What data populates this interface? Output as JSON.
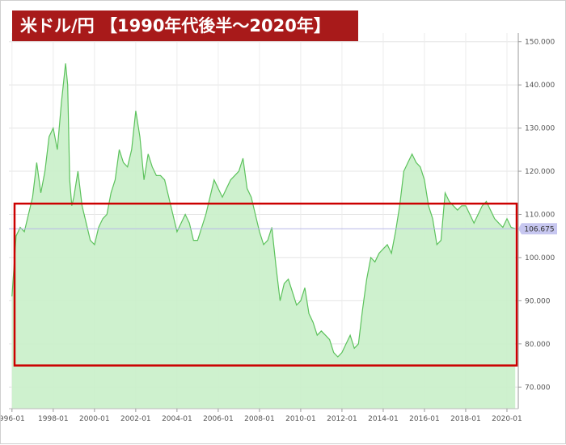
{
  "chart_data": {
    "type": "area",
    "title": "米ドル/円 【1990年代後半〜2020年】",
    "xlabel": "",
    "ylabel": "",
    "ylim": [
      65,
      152
    ],
    "y_ticks": [
      "150.000",
      "140.000",
      "130.000",
      "120.000",
      "110.000",
      "100.000",
      "90.000",
      "80.000",
      "70.000"
    ],
    "x_ticks": [
      "996-01",
      "1998-01",
      "2000-01",
      "2002-01",
      "2004-01",
      "2006-01",
      "2008-01",
      "2010-01",
      "2012-01",
      "2014-01",
      "2016-01",
      "2018-01",
      "2020-01"
    ],
    "current_value": "106.675",
    "highlight_range": [
      75,
      112.5
    ],
    "grid": true,
    "colors": {
      "line": "#5cc25c",
      "fill": "#c9efc9",
      "highlight": "#cc0000",
      "current_line": "#b7b7e8",
      "current_label_bg": "#c7c7f0",
      "title_bg": "#a81a1a"
    },
    "series": [
      {
        "x": [
          1996.0,
          1996.2,
          1996.4,
          1996.6,
          1996.8,
          1997.0,
          1997.2,
          1997.4,
          1997.6,
          1997.8,
          1998.0,
          1998.2,
          1998.4,
          1998.6,
          1998.7,
          1998.8,
          1998.9,
          1999.0,
          1999.2,
          1999.4,
          1999.6,
          1999.8,
          2000.0,
          2000.2,
          2000.4,
          2000.6,
          2000.8,
          2001.0,
          2001.2,
          2001.4,
          2001.6,
          2001.8,
          2002.0,
          2002.2,
          2002.4,
          2002.6,
          2002.8,
          2003.0,
          2003.2,
          2003.4,
          2003.6,
          2003.8,
          2004.0,
          2004.2,
          2004.4,
          2004.6,
          2004.8,
          2005.0,
          2005.2,
          2005.4,
          2005.6,
          2005.8,
          2006.0,
          2006.2,
          2006.4,
          2006.6,
          2006.8,
          2007.0,
          2007.2,
          2007.4,
          2007.6,
          2007.8,
          2008.0,
          2008.2,
          2008.4,
          2008.6,
          2008.8,
          2009.0,
          2009.2,
          2009.4,
          2009.6,
          2009.8,
          2010.0,
          2010.2,
          2010.4,
          2010.6,
          2010.8,
          2011.0,
          2011.2,
          2011.4,
          2011.6,
          2011.8,
          2012.0,
          2012.2,
          2012.4,
          2012.6,
          2012.8,
          2013.0,
          2013.2,
          2013.4,
          2013.6,
          2013.8,
          2014.0,
          2014.2,
          2014.4,
          2014.6,
          2014.8,
          2015.0,
          2015.2,
          2015.4,
          2015.6,
          2015.8,
          2016.0,
          2016.2,
          2016.4,
          2016.6,
          2016.8,
          2017.0,
          2017.2,
          2017.4,
          2017.6,
          2017.8,
          2018.0,
          2018.2,
          2018.4,
          2018.6,
          2018.8,
          2019.0,
          2019.2,
          2019.4,
          2019.6,
          2019.8,
          2020.0,
          2020.2,
          2020.4
        ],
        "values": [
          91,
          105,
          107,
          106,
          110,
          114,
          122,
          115,
          120,
          128,
          130,
          125,
          136,
          145,
          140,
          118,
          112,
          114,
          120,
          112,
          108,
          104,
          103,
          107,
          109,
          110,
          115,
          118,
          125,
          122,
          121,
          125,
          134,
          128,
          118,
          124,
          121,
          119,
          119,
          118,
          114,
          110,
          106,
          108,
          110,
          108,
          104,
          104,
          107,
          110,
          114,
          118,
          116,
          114,
          116,
          118,
          119,
          120,
          123,
          116,
          114,
          110,
          106,
          103,
          104,
          107,
          98,
          90,
          94,
          95,
          92,
          89,
          90,
          93,
          87,
          85,
          82,
          83,
          82,
          81,
          78,
          77,
          78,
          80,
          82,
          79,
          80,
          88,
          95,
          100,
          99,
          101,
          102,
          103,
          101,
          106,
          112,
          120,
          122,
          124,
          122,
          121,
          118,
          112,
          109,
          103,
          104,
          115,
          113,
          112,
          111,
          112,
          112,
          110,
          108,
          110,
          112,
          113,
          111,
          109,
          108,
          107,
          109,
          107,
          106.7
        ]
      }
    ]
  }
}
